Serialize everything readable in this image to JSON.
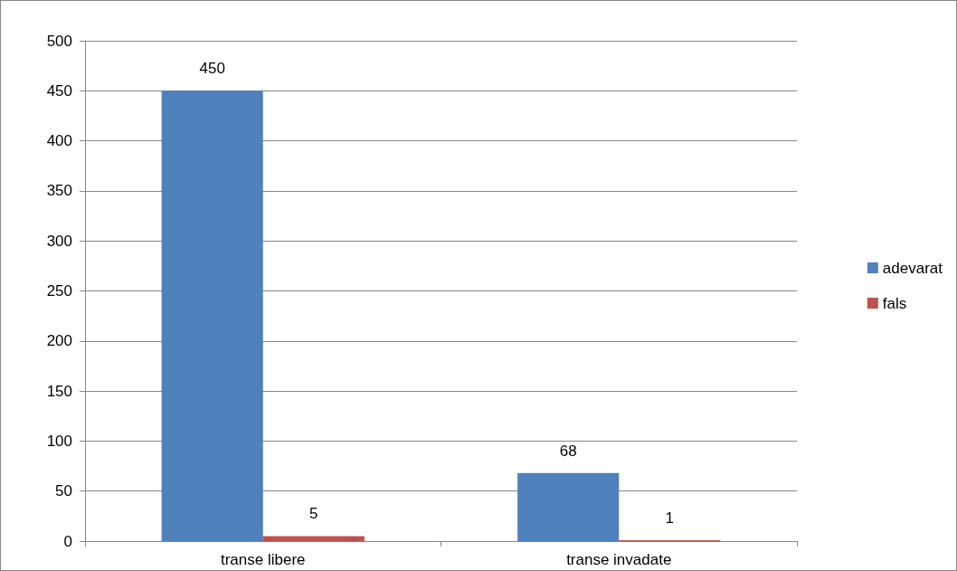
{
  "chart_data": {
    "type": "bar",
    "categories": [
      "transe libere",
      "transe invadate"
    ],
    "series": [
      {
        "name": "adevarat",
        "color": "#4f81bd",
        "values": [
          450,
          68
        ]
      },
      {
        "name": "fals",
        "color": "#c0504d",
        "values": [
          5,
          1
        ]
      }
    ],
    "ylim": [
      0,
      500
    ],
    "yticks": [
      0,
      50,
      100,
      150,
      200,
      250,
      300,
      350,
      400,
      450,
      500
    ],
    "grid": "y",
    "legend": "right",
    "data_labels": true
  }
}
